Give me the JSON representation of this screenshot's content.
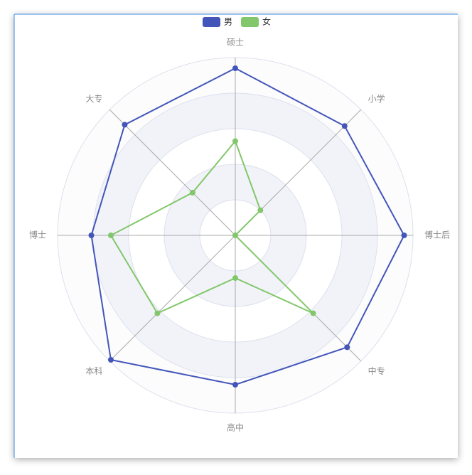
{
  "chart_data": {
    "type": "radar",
    "indicators": [
      "硕士",
      "大专",
      "博士",
      "本科",
      "高中",
      "中专",
      "博士后",
      "小学"
    ],
    "rlim": [
      0,
      100
    ],
    "rticks": [
      0,
      20,
      40,
      60,
      80,
      100
    ],
    "legend": "top",
    "series": [
      {
        "name": "男",
        "color": "#4355b9",
        "values": [
          94,
          88,
          81,
          99,
          84,
          89,
          95,
          87
        ]
      },
      {
        "name": "女",
        "color": "#82c76a",
        "values": [
          53,
          34,
          70,
          62,
          24,
          62,
          0,
          20
        ]
      }
    ]
  }
}
